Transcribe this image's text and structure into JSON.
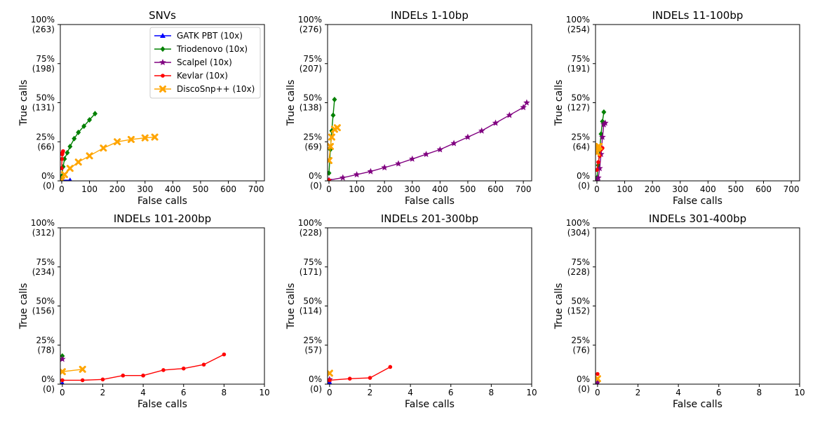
{
  "chart_data": [
    {
      "type": "line",
      "title": "SNVs",
      "xlabel": "False calls",
      "ylabel": "True calls",
      "xlim": [
        -5,
        730
      ],
      "ylim": [
        0,
        100
      ],
      "xticks": [
        0,
        100,
        200,
        300,
        400,
        500,
        600,
        700
      ],
      "yticks": [
        {
          "value": 100,
          "pct": "100%",
          "count": "(263)"
        },
        {
          "value": 75,
          "pct": "75%",
          "count": "(198)"
        },
        {
          "value": 50,
          "pct": "50%",
          "count": "(131)"
        },
        {
          "value": 25,
          "pct": "25%",
          "count": "(66)"
        },
        {
          "value": 0,
          "pct": "0%",
          "count": "(0)"
        }
      ],
      "legend": {
        "position": "top-right",
        "entries": [
          "GATK PBT (10x)",
          "Triodenovo (10x)",
          "Scalpel (10x)",
          "Kevlar (10x)",
          "DiscoSnp++ (10x)"
        ]
      },
      "series": [
        {
          "name": "GATK PBT (10x)",
          "color": "#0000ff",
          "marker": "triangle",
          "x": [
            0,
            30
          ],
          "y": [
            0.4,
            0.4
          ]
        },
        {
          "name": "Triodenovo (10x)",
          "color": "#008000",
          "marker": "diamond",
          "x": [
            0,
            5,
            10,
            20,
            30,
            45,
            60,
            80,
            100,
            120
          ],
          "y": [
            3,
            9,
            14,
            18,
            22,
            27,
            31,
            35,
            39,
            43
          ]
        },
        {
          "name": "Scalpel (10x)",
          "color": "#800080",
          "marker": "star",
          "x": [],
          "y": []
        },
        {
          "name": "Kevlar (10x)",
          "color": "#ff0000",
          "marker": "circle",
          "x": [
            0,
            1,
            2,
            3,
            5
          ],
          "y": [
            8,
            14,
            17,
            18,
            19
          ]
        },
        {
          "name": "DiscoSnp++ (10x)",
          "color": "#ffa500",
          "marker": "x",
          "x": [
            0,
            10,
            30,
            60,
            100,
            150,
            200,
            250,
            300,
            335
          ],
          "y": [
            0.5,
            4,
            8,
            12,
            16,
            21,
            25,
            26.5,
            27.5,
            28
          ]
        }
      ]
    },
    {
      "type": "line",
      "title": "INDELs 1-10bp",
      "xlabel": "False calls",
      "ylabel": "True calls",
      "xlim": [
        -5,
        730
      ],
      "ylim": [
        0,
        100
      ],
      "xticks": [
        0,
        100,
        200,
        300,
        400,
        500,
        600,
        700
      ],
      "yticks": [
        {
          "value": 100,
          "pct": "100%",
          "count": "(276)"
        },
        {
          "value": 75,
          "pct": "75%",
          "count": "(207)"
        },
        {
          "value": 50,
          "pct": "50%",
          "count": "(138)"
        },
        {
          "value": 25,
          "pct": "25%",
          "count": "(69)"
        },
        {
          "value": 0,
          "pct": "0%",
          "count": "(0)"
        }
      ],
      "series": [
        {
          "name": "Triodenovo (10x)",
          "color": "#008000",
          "marker": "diamond",
          "x": [
            0,
            5,
            10,
            15,
            20
          ],
          "y": [
            5,
            20,
            32,
            42,
            52
          ]
        },
        {
          "name": "Scalpel (10x)",
          "color": "#800080",
          "marker": "star",
          "x": [
            0,
            50,
            100,
            150,
            200,
            250,
            300,
            350,
            400,
            450,
            500,
            550,
            600,
            650,
            700,
            712
          ],
          "y": [
            0.5,
            2,
            4,
            6,
            8.5,
            11,
            14,
            17,
            20,
            24,
            28,
            32,
            37,
            42,
            47,
            50
          ]
        },
        {
          "name": "Kevlar (10x)",
          "color": "#ff0000",
          "marker": "circle",
          "x": [
            0
          ],
          "y": [
            0.5
          ]
        },
        {
          "name": "DiscoSnp++ (10x)",
          "color": "#ffa500",
          "marker": "x",
          "x": [
            0,
            5,
            10,
            20,
            30
          ],
          "y": [
            13,
            22,
            28,
            33,
            34
          ]
        }
      ]
    },
    {
      "type": "line",
      "title": "INDELs 11-100bp",
      "xlabel": "False calls",
      "ylabel": "True calls",
      "xlim": [
        -5,
        730
      ],
      "ylim": [
        0,
        100
      ],
      "xticks": [
        0,
        100,
        200,
        300,
        400,
        500,
        600,
        700
      ],
      "yticks": [
        {
          "value": 100,
          "pct": "100%",
          "count": "(254)"
        },
        {
          "value": 75,
          "pct": "75%",
          "count": "(191)"
        },
        {
          "value": 50,
          "pct": "50%",
          "count": "(127)"
        },
        {
          "value": 25,
          "pct": "25%",
          "count": "(64)"
        },
        {
          "value": 0,
          "pct": "0%",
          "count": "(0)"
        }
      ],
      "series": [
        {
          "name": "GATK PBT (10x)",
          "color": "#0000ff",
          "marker": "triangle",
          "x": [
            0
          ],
          "y": [
            0.5
          ]
        },
        {
          "name": "Triodenovo (10x)",
          "color": "#008000",
          "marker": "diamond",
          "x": [
            0,
            5,
            10,
            15,
            20,
            25
          ],
          "y": [
            2,
            10,
            20,
            30,
            38,
            44
          ]
        },
        {
          "name": "Scalpel (10x)",
          "color": "#800080",
          "marker": "star",
          "x": [
            0,
            5,
            10,
            15,
            20,
            25,
            30
          ],
          "y": [
            0,
            2,
            8,
            17,
            28,
            36,
            37
          ]
        },
        {
          "name": "Kevlar (10x)",
          "color": "#ff0000",
          "marker": "circle",
          "x": [
            0,
            5,
            10,
            15,
            20
          ],
          "y": [
            7,
            12,
            16,
            20,
            21
          ]
        },
        {
          "name": "DiscoSnp++ (10x)",
          "color": "#ffa500",
          "marker": "x",
          "x": [
            0,
            2,
            5,
            8
          ],
          "y": [
            18,
            21,
            22,
            22
          ]
        }
      ]
    },
    {
      "type": "line",
      "title": "INDELs 101-200bp",
      "xlabel": "False calls",
      "ylabel": "True calls",
      "xlim": [
        -0.1,
        10
      ],
      "ylim": [
        0,
        100
      ],
      "xticks": [
        0,
        2,
        4,
        6,
        8,
        10
      ],
      "yticks": [
        {
          "value": 100,
          "pct": "100%",
          "count": "(312)"
        },
        {
          "value": 75,
          "pct": "75%",
          "count": "(234)"
        },
        {
          "value": 50,
          "pct": "50%",
          "count": "(156)"
        },
        {
          "value": 25,
          "pct": "25%",
          "count": "(78)"
        },
        {
          "value": 0,
          "pct": "0%",
          "count": "(0)"
        }
      ],
      "series": [
        {
          "name": "GATK PBT (10x)",
          "color": "#0000ff",
          "marker": "triangle",
          "x": [
            0
          ],
          "y": [
            0.5
          ]
        },
        {
          "name": "Triodenovo (10x)",
          "color": "#008000",
          "marker": "diamond",
          "x": [
            0
          ],
          "y": [
            18
          ]
        },
        {
          "name": "Scalpel (10x)",
          "color": "#800080",
          "marker": "star",
          "x": [
            0
          ],
          "y": [
            16
          ]
        },
        {
          "name": "Kevlar (10x)",
          "color": "#ff0000",
          "marker": "circle",
          "x": [
            0,
            1,
            2,
            3,
            4,
            5,
            6,
            7,
            8
          ],
          "y": [
            2.5,
            2.5,
            3,
            5.5,
            5.5,
            9,
            10,
            12.5,
            19
          ]
        },
        {
          "name": "DiscoSnp++ (10x)",
          "color": "#ffa500",
          "marker": "x",
          "x": [
            0,
            1
          ],
          "y": [
            8,
            9.5
          ]
        }
      ]
    },
    {
      "type": "line",
      "title": "INDELs 201-300bp",
      "xlabel": "False calls",
      "ylabel": "True calls",
      "xlim": [
        -0.1,
        10
      ],
      "ylim": [
        0,
        100
      ],
      "xticks": [
        0,
        2,
        4,
        6,
        8,
        10
      ],
      "yticks": [
        {
          "value": 100,
          "pct": "100%",
          "count": "(228)"
        },
        {
          "value": 75,
          "pct": "75%",
          "count": "(171)"
        },
        {
          "value": 50,
          "pct": "50%",
          "count": "(114)"
        },
        {
          "value": 25,
          "pct": "25%",
          "count": "(57)"
        },
        {
          "value": 0,
          "pct": "0%",
          "count": "(0)"
        }
      ],
      "series": [
        {
          "name": "GATK PBT (10x)",
          "color": "#0000ff",
          "marker": "triangle",
          "x": [
            0
          ],
          "y": [
            1
          ]
        },
        {
          "name": "Scalpel (10x)",
          "color": "#800080",
          "marker": "star",
          "x": [
            0
          ],
          "y": [
            3
          ]
        },
        {
          "name": "Kevlar (10x)",
          "color": "#ff0000",
          "marker": "circle",
          "x": [
            0,
            1,
            2,
            3
          ],
          "y": [
            2.5,
            3.5,
            4,
            11
          ]
        },
        {
          "name": "DiscoSnp++ (10x)",
          "color": "#ffa500",
          "marker": "x",
          "x": [
            0
          ],
          "y": [
            7
          ]
        }
      ]
    },
    {
      "type": "line",
      "title": "INDELs 301-400bp",
      "xlabel": "False calls",
      "ylabel": "True calls",
      "xlim": [
        -0.1,
        10
      ],
      "ylim": [
        0,
        100
      ],
      "xticks": [
        0,
        2,
        4,
        6,
        8,
        10
      ],
      "yticks": [
        {
          "value": 100,
          "pct": "100%",
          "count": "(304)"
        },
        {
          "value": 75,
          "pct": "75%",
          "count": "(228)"
        },
        {
          "value": 50,
          "pct": "50%",
          "count": "(152)"
        },
        {
          "value": 25,
          "pct": "25%",
          "count": "(76)"
        },
        {
          "value": 0,
          "pct": "0%",
          "count": "(0)"
        }
      ],
      "series": [
        {
          "name": "GATK PBT (10x)",
          "color": "#0000ff",
          "marker": "triangle",
          "x": [
            0
          ],
          "y": [
            0.5
          ]
        },
        {
          "name": "Scalpel (10x)",
          "color": "#800080",
          "marker": "star",
          "x": [
            0
          ],
          "y": [
            1
          ]
        },
        {
          "name": "Kevlar (10x)",
          "color": "#ff0000",
          "marker": "circle",
          "x": [
            0
          ],
          "y": [
            6.5
          ]
        },
        {
          "name": "DiscoSnp++ (10x)",
          "color": "#ffa500",
          "marker": "x",
          "x": [
            0
          ],
          "y": [
            3.5
          ]
        }
      ]
    }
  ]
}
